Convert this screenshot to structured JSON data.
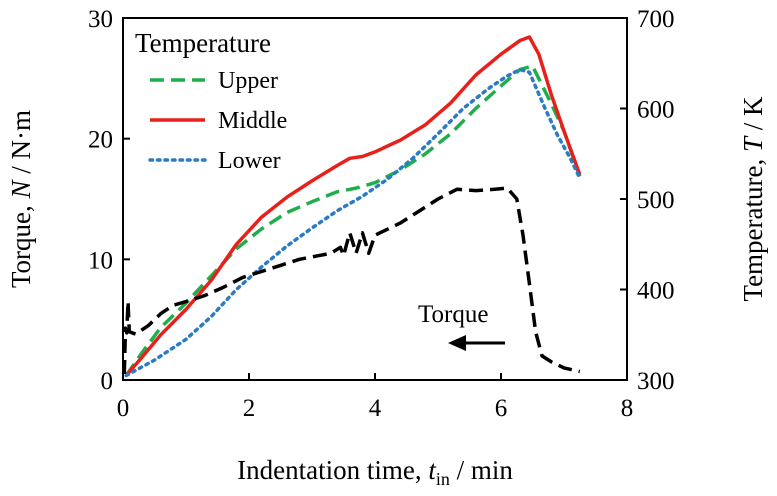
{
  "chart_data": {
    "type": "line",
    "xlabel": {
      "prefix": "Indentation time, ",
      "var": "t",
      "sub": "in",
      "suffix": " / min"
    },
    "ylabel_left": {
      "prefix": "Torque, ",
      "var": "N",
      "suffix": " / N·m"
    },
    "ylabel_right": {
      "prefix": "Temperature, ",
      "var": "T",
      "suffix": " / K"
    },
    "xlim": [
      0,
      8
    ],
    "ylim_left": [
      0,
      30
    ],
    "ylim_right": [
      300,
      700
    ],
    "x_ticks": [
      "0",
      "2",
      "4",
      "6",
      "8"
    ],
    "y_left_ticks": [
      "0",
      "10",
      "20",
      "30"
    ],
    "y_right_ticks": [
      "300",
      "400",
      "500",
      "600",
      "700"
    ],
    "legend": {
      "title": "Temperature",
      "position": "top-left"
    },
    "annotation": {
      "text": "Torque",
      "arrow": "left"
    },
    "series": [
      {
        "name": "Upper",
        "axis": "right",
        "color": "#1fae4b",
        "style": "dashed",
        "points": [
          [
            0.05,
            305
          ],
          [
            0.3,
            330
          ],
          [
            0.6,
            358
          ],
          [
            1.0,
            385
          ],
          [
            1.4,
            415
          ],
          [
            1.8,
            445
          ],
          [
            2.2,
            467
          ],
          [
            2.6,
            485
          ],
          [
            3.0,
            497
          ],
          [
            3.4,
            508
          ],
          [
            3.7,
            512
          ],
          [
            4.0,
            518
          ],
          [
            4.4,
            532
          ],
          [
            4.8,
            550
          ],
          [
            5.2,
            572
          ],
          [
            5.6,
            600
          ],
          [
            6.0,
            625
          ],
          [
            6.3,
            643
          ],
          [
            6.5,
            647
          ],
          [
            6.8,
            605
          ],
          [
            7.0,
            575
          ],
          [
            7.25,
            525
          ]
        ]
      },
      {
        "name": "Middle",
        "axis": "right",
        "color": "#e8201c",
        "style": "solid",
        "points": [
          [
            0.05,
            305
          ],
          [
            0.3,
            325
          ],
          [
            0.6,
            350
          ],
          [
            1.0,
            378
          ],
          [
            1.4,
            410
          ],
          [
            1.8,
            450
          ],
          [
            2.2,
            480
          ],
          [
            2.6,
            502
          ],
          [
            3.0,
            520
          ],
          [
            3.4,
            537
          ],
          [
            3.6,
            545
          ],
          [
            3.8,
            547
          ],
          [
            4.0,
            552
          ],
          [
            4.4,
            565
          ],
          [
            4.8,
            582
          ],
          [
            5.2,
            606
          ],
          [
            5.6,
            637
          ],
          [
            6.0,
            660
          ],
          [
            6.3,
            675
          ],
          [
            6.45,
            679
          ],
          [
            6.6,
            660
          ],
          [
            6.8,
            615
          ],
          [
            7.0,
            575
          ],
          [
            7.25,
            527
          ]
        ]
      },
      {
        "name": "Lower",
        "axis": "right",
        "color": "#2a7bc4",
        "style": "dotted",
        "points": [
          [
            0.05,
            305
          ],
          [
            0.5,
            322
          ],
          [
            1.0,
            345
          ],
          [
            1.4,
            370
          ],
          [
            1.8,
            400
          ],
          [
            2.2,
            425
          ],
          [
            2.6,
            448
          ],
          [
            3.0,
            468
          ],
          [
            3.4,
            487
          ],
          [
            3.8,
            503
          ],
          [
            4.2,
            522
          ],
          [
            4.6,
            545
          ],
          [
            5.0,
            572
          ],
          [
            5.4,
            600
          ],
          [
            5.8,
            622
          ],
          [
            6.1,
            636
          ],
          [
            6.3,
            643
          ],
          [
            6.45,
            640
          ],
          [
            6.7,
            600
          ],
          [
            6.9,
            570
          ],
          [
            7.1,
            545
          ],
          [
            7.25,
            523
          ]
        ]
      },
      {
        "name": "Torque",
        "axis": "left",
        "color": "#000000",
        "style": "dashed",
        "points": [
          [
            0.02,
            0.5
          ],
          [
            0.04,
            4.3
          ],
          [
            0.06,
            3.9
          ],
          [
            0.08,
            6.5
          ],
          [
            0.1,
            4.0
          ],
          [
            0.2,
            3.8
          ],
          [
            0.4,
            4.5
          ],
          [
            0.6,
            5.5
          ],
          [
            0.8,
            6.2
          ],
          [
            1.0,
            6.5
          ],
          [
            1.3,
            7.0
          ],
          [
            1.6,
            7.7
          ],
          [
            1.9,
            8.5
          ],
          [
            2.2,
            9.0
          ],
          [
            2.5,
            9.5
          ],
          [
            2.8,
            10.0
          ],
          [
            3.1,
            10.3
          ],
          [
            3.3,
            10.5
          ],
          [
            3.45,
            11.0
          ],
          [
            3.5,
            10.3
          ],
          [
            3.6,
            12.2
          ],
          [
            3.7,
            10.5
          ],
          [
            3.8,
            12.2
          ],
          [
            3.9,
            10.5
          ],
          [
            4.0,
            12.0
          ],
          [
            4.2,
            12.5
          ],
          [
            4.4,
            13.0
          ],
          [
            4.7,
            14.0
          ],
          [
            5.0,
            15.0
          ],
          [
            5.3,
            15.8
          ],
          [
            5.6,
            15.7
          ],
          [
            5.9,
            15.8
          ],
          [
            6.1,
            15.9
          ],
          [
            6.25,
            15.0
          ],
          [
            6.35,
            12.0
          ],
          [
            6.45,
            8.0
          ],
          [
            6.55,
            4.0
          ],
          [
            6.65,
            2.0
          ],
          [
            6.8,
            1.5
          ],
          [
            7.0,
            1.0
          ],
          [
            7.25,
            0.7
          ]
        ]
      }
    ]
  }
}
